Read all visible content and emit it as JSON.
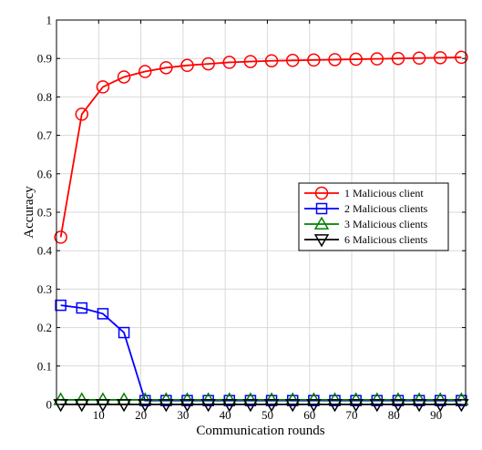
{
  "chart_data": {
    "type": "line",
    "title": "",
    "xlabel": "Communication rounds",
    "ylabel": "Accuracy",
    "xlim": [
      0,
      97
    ],
    "ylim": [
      0,
      1
    ],
    "xticks": [
      10,
      20,
      30,
      40,
      50,
      60,
      70,
      80,
      90
    ],
    "yticks": [
      0,
      0.1,
      0.2,
      0.3,
      0.4,
      0.5,
      0.6,
      0.7,
      0.8,
      0.9,
      1
    ],
    "ytick_labels": [
      "0",
      "0.1",
      "0.2",
      "0.3",
      "0.4",
      "0.5",
      "0.6",
      "0.7",
      "0.8",
      "0.9",
      "1"
    ],
    "grid": true,
    "legend_position": "right",
    "x": [
      1,
      6,
      11,
      16,
      21,
      26,
      31,
      36,
      41,
      46,
      51,
      56,
      61,
      66,
      71,
      76,
      81,
      86,
      91,
      96
    ],
    "series": [
      {
        "name": "1 Malicious client",
        "color": "#ff0000",
        "marker": "circle",
        "values": [
          0.435,
          0.755,
          0.826,
          0.852,
          0.866,
          0.876,
          0.882,
          0.886,
          0.89,
          0.892,
          0.894,
          0.895,
          0.896,
          0.897,
          0.898,
          0.899,
          0.9,
          0.901,
          0.902,
          0.903
        ]
      },
      {
        "name": "2 Malicious clients",
        "color": "#0000ff",
        "marker": "square",
        "values": [
          0.258,
          0.251,
          0.236,
          0.187,
          0.01,
          0.01,
          0.01,
          0.01,
          0.01,
          0.01,
          0.01,
          0.01,
          0.01,
          0.01,
          0.01,
          0.01,
          0.01,
          0.01,
          0.01,
          0.01
        ]
      },
      {
        "name": "3 Malicious clients",
        "color": "#008000",
        "marker": "triangle-up",
        "values": [
          0.012,
          0.012,
          0.012,
          0.012,
          0.012,
          0.012,
          0.012,
          0.012,
          0.012,
          0.012,
          0.012,
          0.012,
          0.012,
          0.012,
          0.012,
          0.012,
          0.012,
          0.012,
          0.012,
          0.012
        ]
      },
      {
        "name": "6 Malicious clients",
        "color": "#000000",
        "marker": "triangle-down",
        "values": [
          0.0,
          0.0,
          0.0,
          0.0,
          0.0,
          0.0,
          0.0,
          0.0,
          0.0,
          0.0,
          0.0,
          0.0,
          0.0,
          0.0,
          0.0,
          0.0,
          0.0,
          0.0,
          0.0,
          0.0
        ]
      }
    ]
  }
}
